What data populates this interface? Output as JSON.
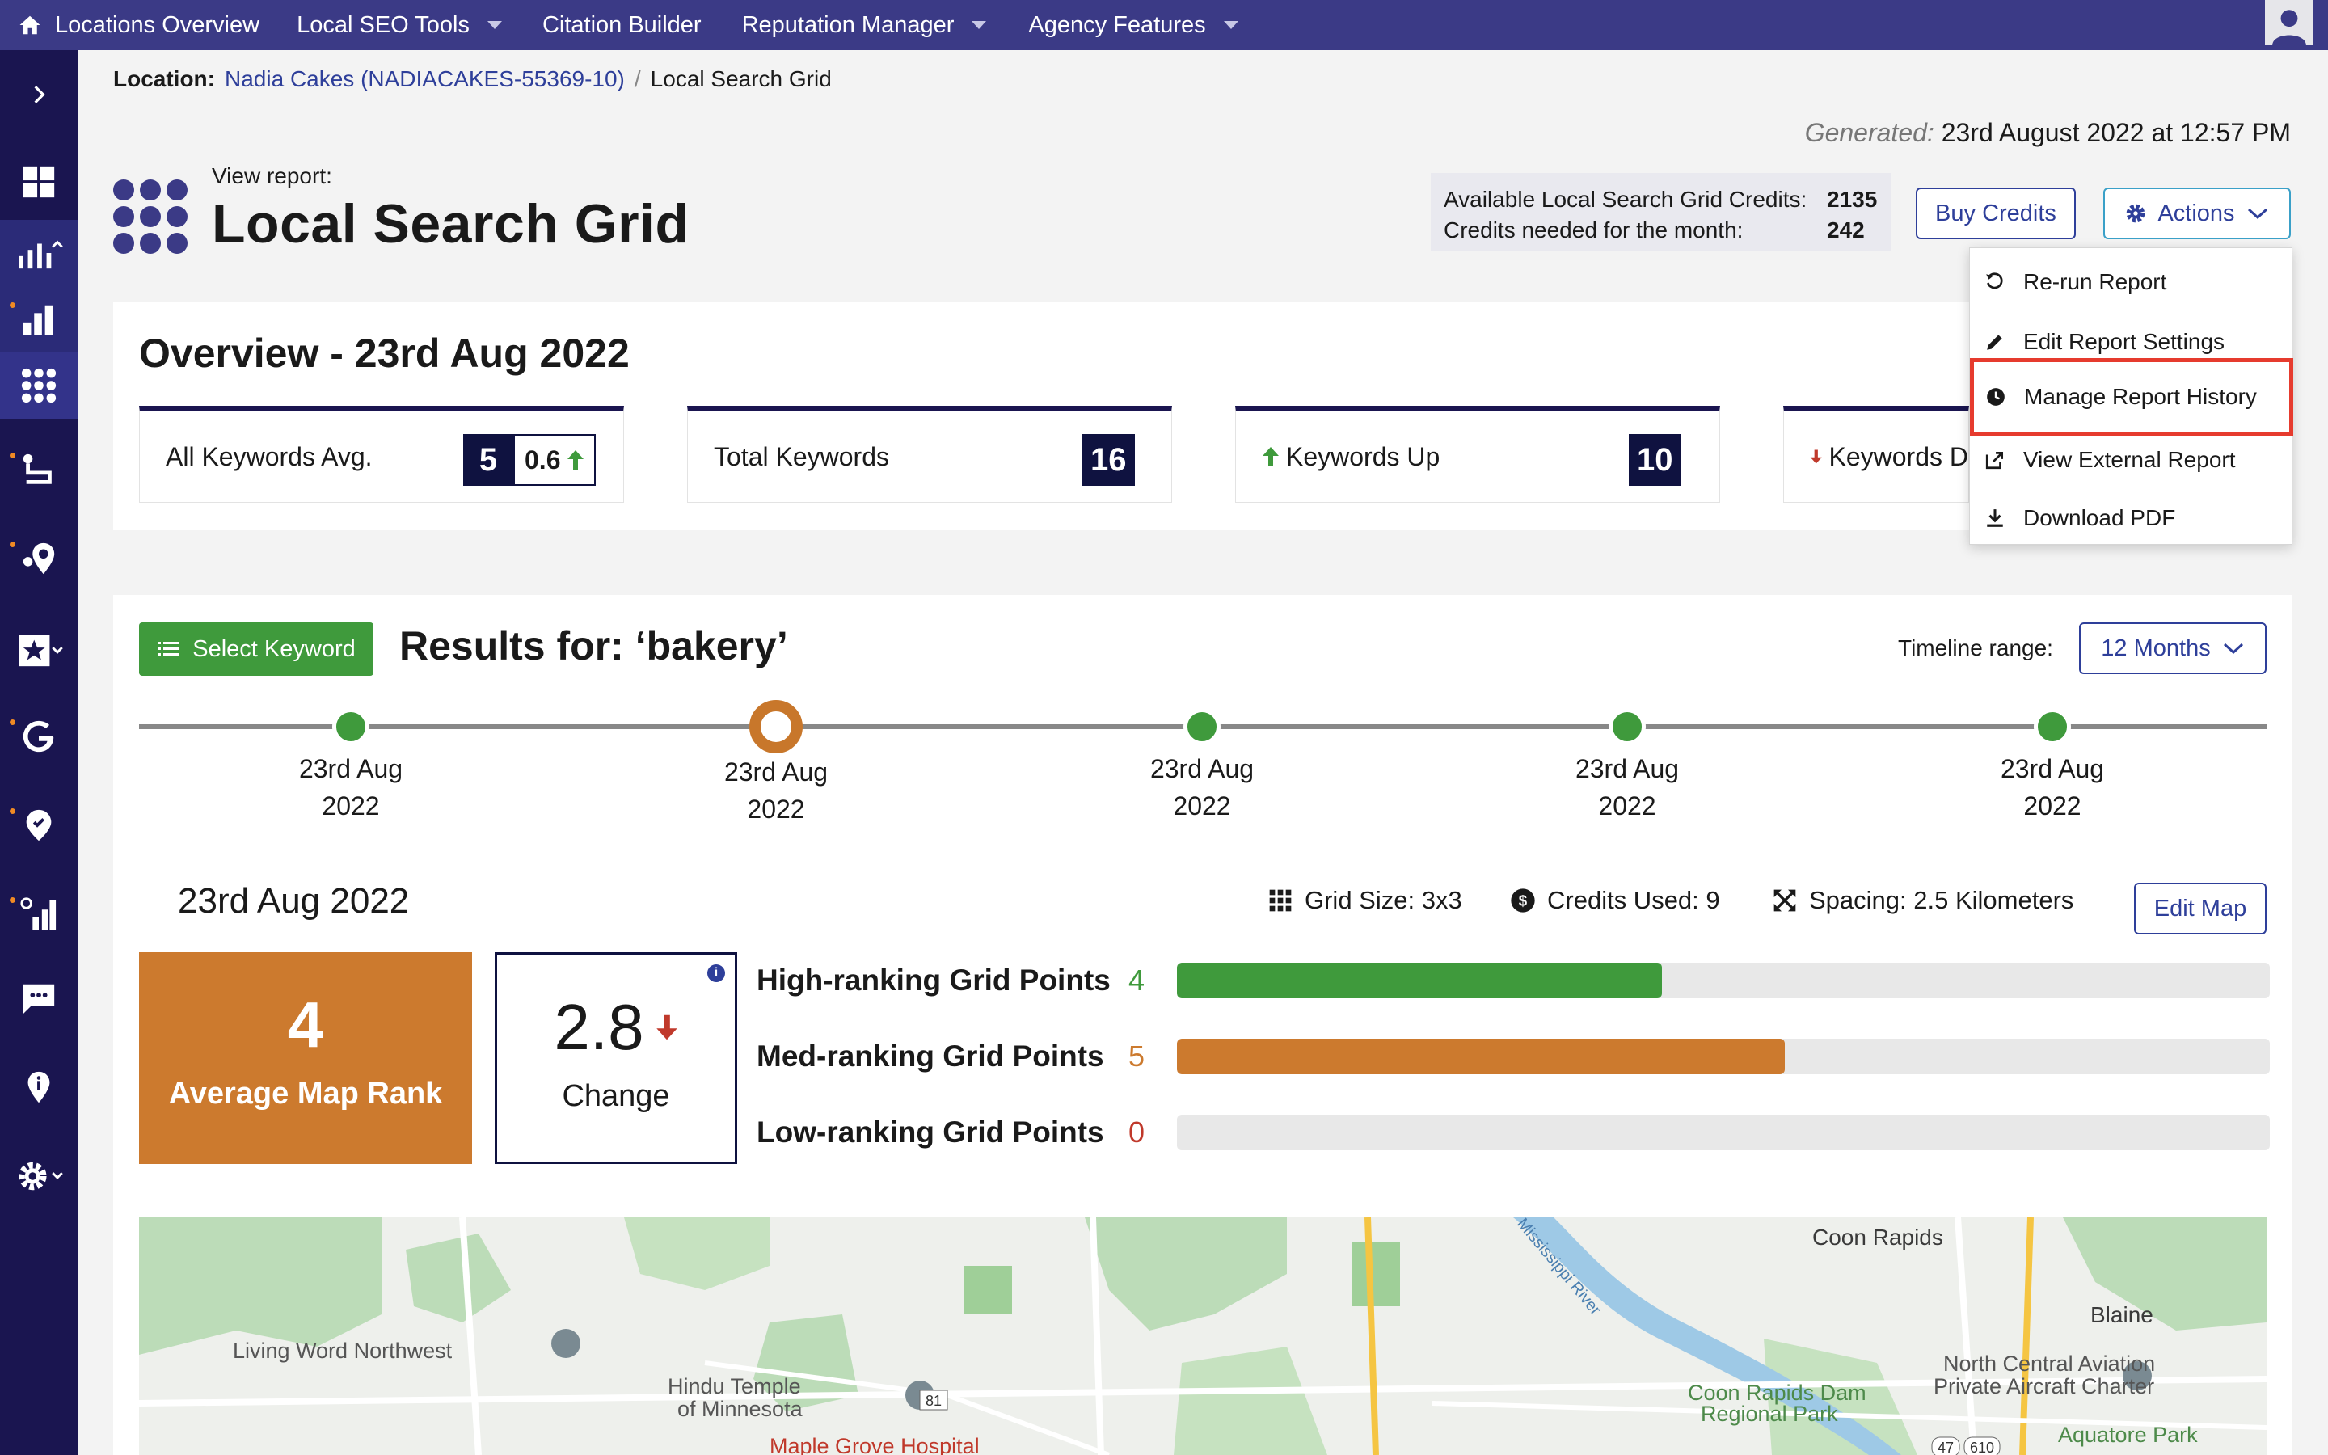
{
  "topnav": {
    "items": [
      "Locations Overview",
      "Local SEO Tools",
      "Citation Builder",
      "Reputation Manager",
      "Agency Features"
    ]
  },
  "breadcrumb": {
    "label": "Location:",
    "location": "Nadia Cakes (NADIACAKES-55369-10)",
    "separator": "/",
    "current": "Local Search Grid"
  },
  "generated": {
    "label": "Generated:",
    "value": "23rd August 2022 at 12:57 PM"
  },
  "header": {
    "view_label": "View report:",
    "title": "Local Search Grid"
  },
  "credits": {
    "available_label": "Available Local Search Grid Credits:",
    "available_value": "2135",
    "needed_label": "Credits needed for the month:",
    "needed_value": "242",
    "buy_label": "Buy Credits"
  },
  "actions": {
    "label": "Actions",
    "menu": [
      "Re-run Report",
      "Edit Report Settings",
      "Manage Report History",
      "View External Report",
      "Download PDF"
    ]
  },
  "overview": {
    "title": "Overview - 23rd Aug 2022",
    "stats": [
      {
        "label": "All Keywords Avg.",
        "value": "5",
        "delta": "0.6"
      },
      {
        "label": "Total Keywords",
        "value": "16"
      },
      {
        "label": "Keywords Up",
        "value": "10"
      },
      {
        "label": "Keywords D"
      }
    ]
  },
  "results": {
    "select_keyword": "Select Keyword",
    "title": "Results for: ‘bakery’",
    "timeline_label": "Timeline range:",
    "timeline_value": "12 Months",
    "timeline": [
      {
        "day": "23rd Aug",
        "year": "2022",
        "current": false
      },
      {
        "day": "23rd Aug",
        "year": "2022",
        "current": true
      },
      {
        "day": "23rd Aug",
        "year": "2022",
        "current": false
      },
      {
        "day": "23rd Aug",
        "year": "2022",
        "current": false
      },
      {
        "day": "23rd Aug",
        "year": "2022",
        "current": false
      }
    ],
    "snapshot_date": "23rd Aug 2022",
    "grid_size": "Grid Size: 3x3",
    "credits_used": "Credits Used: 9",
    "spacing": "Spacing: 2.5 Kilometers",
    "edit_map": "Edit Map",
    "avg_rank": {
      "value": "4",
      "label": "Average Map Rank"
    },
    "change": {
      "value": "2.8",
      "label": "Change"
    },
    "grid_points": [
      {
        "label": "High-ranking Grid Points",
        "count": "4",
        "fraction": 0.444,
        "color": "#3f9a3c"
      },
      {
        "label": "Med-ranking Grid Points",
        "count": "5",
        "fraction": 0.556,
        "color": "#cc7a2e"
      },
      {
        "label": "Low-ranking Grid Points",
        "count": "0",
        "fraction": 0,
        "color": "#c0392b"
      }
    ]
  },
  "map": {
    "labels": [
      "Coon Rapids",
      "Blaine",
      "Living Word Northwest",
      "Hindu Temple",
      "of Minnesota",
      "Coon Rapids Dam",
      "Regional Park",
      "North Central Aviation",
      "Private Aircraft Charter",
      "Aquatore Park",
      "Maple Grove Hospital",
      "Mississippi River",
      "81",
      "47",
      "610"
    ]
  },
  "colors": {
    "nav": "#3b3a86",
    "sidebar": "#1a1550",
    "accent": "#2e3f9a",
    "green": "#3f9a3c",
    "orange": "#cc7a2e",
    "highlight": "#e63b2e"
  }
}
